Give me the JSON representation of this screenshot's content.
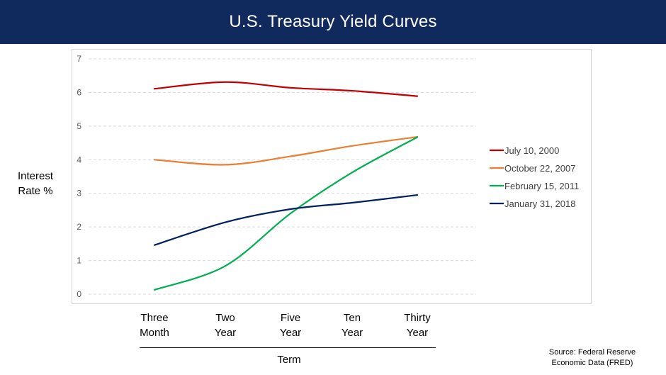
{
  "chart_data": {
    "type": "line",
    "title": "U.S. Treasury Yield Curves",
    "ylabel_line1": "Interest",
    "ylabel_line2": "Rate %",
    "xlabel": "Term",
    "categories": [
      "Three\nMonth",
      "Two\nYear",
      "Five\nYear",
      "Ten\nYear",
      "Thirty\nYear"
    ],
    "ylim": [
      0,
      7
    ],
    "yticks": [
      "0",
      "1",
      "2",
      "3",
      "4",
      "5",
      "6",
      "7"
    ],
    "grid": true,
    "legend_position": "right",
    "series": [
      {
        "name": "July 10, 2000",
        "color": "#c00000",
        "values": [
          6.11,
          6.31,
          6.14,
          6.05,
          5.89
        ]
      },
      {
        "name": "October 22, 2007",
        "color": "#ed7d31",
        "values": [
          4.0,
          3.85,
          4.1,
          4.41,
          4.68
        ]
      },
      {
        "name": "February 15, 2011",
        "color": "#00b050",
        "values": [
          0.13,
          0.84,
          2.4,
          3.62,
          4.67
        ]
      },
      {
        "name": "January 31, 2018",
        "color": "#002060",
        "values": [
          1.46,
          2.14,
          2.53,
          2.72,
          2.95
        ]
      }
    ],
    "source_line1": "Source:  Federal Reserve",
    "source_line2": "Economic Data (FRED)"
  }
}
